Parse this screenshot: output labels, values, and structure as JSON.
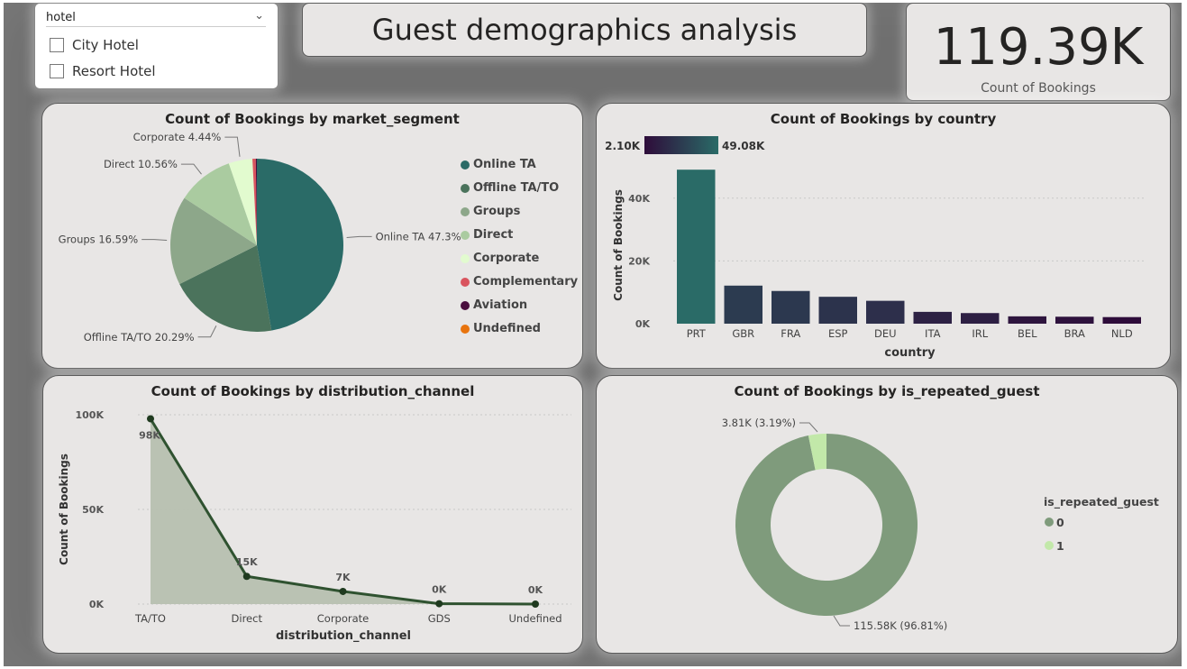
{
  "slicer": {
    "field": "hotel",
    "options": [
      "City Hotel",
      "Resort Hotel"
    ]
  },
  "header": {
    "title": "Guest demographics analysis"
  },
  "kpi": {
    "value": "119.39K",
    "label": "Count of Bookings"
  },
  "colors": {
    "teal": "#2a6b67",
    "purple_dark": "#2e0c3a",
    "line": "#2f5230",
    "area": "#b7c0b0",
    "donut0": "#7f9b7c",
    "donut1": "#c2e8a9"
  },
  "chart_data": [
    {
      "id": "market_segment",
      "type": "pie",
      "title": "Count of Bookings by market_segment",
      "slices": [
        {
          "name": "Online TA",
          "value": 47.3,
          "label": "Online TA 47.3%",
          "color": "#2a6b67"
        },
        {
          "name": "Offline TA/TO",
          "value": 20.29,
          "label": "Offline TA/TO 20.29%",
          "color": "#4b735c"
        },
        {
          "name": "Groups",
          "value": 16.59,
          "label": "Groups 16.59%",
          "color": "#8da78a"
        },
        {
          "name": "Direct",
          "value": 10.56,
          "label": "Direct 10.56%",
          "color": "#aacba0"
        },
        {
          "name": "Corporate",
          "value": 4.44,
          "label": "Corporate 4.44%",
          "color": "#e2fbcf"
        },
        {
          "name": "Complementary",
          "value": 0.62,
          "label": "",
          "color": "#d9545e"
        },
        {
          "name": "Aviation",
          "value": 0.2,
          "label": "",
          "color": "#4a0e3e"
        },
        {
          "name": "Undefined",
          "value": 0.0,
          "label": "",
          "color": "#e8740e"
        }
      ],
      "legend": [
        "Online TA",
        "Offline TA/TO",
        "Groups",
        "Direct",
        "Corporate",
        "Complementary",
        "Aviation",
        "Undefined"
      ]
    },
    {
      "id": "country",
      "type": "bar",
      "title": "Count of Bookings by country",
      "xlabel": "country",
      "ylabel": "Count of Bookings",
      "categories": [
        "PRT",
        "GBR",
        "FRA",
        "ESP",
        "DEU",
        "ITA",
        "IRL",
        "BEL",
        "BRA",
        "NLD"
      ],
      "values": [
        49080,
        12130,
        10420,
        8570,
        7290,
        3770,
        3380,
        2340,
        2220,
        2100
      ],
      "ylim": [
        0,
        50000
      ],
      "yticks": [
        0,
        20000,
        40000
      ],
      "ytick_labels": [
        "0K",
        "20K",
        "40K"
      ],
      "color_scale": {
        "min_label": "2.10K",
        "max_label": "49.08K",
        "min_color": "#2e0c3a",
        "max_color": "#2a6b67"
      }
    },
    {
      "id": "distribution_channel",
      "type": "area",
      "title": "Count of Bookings by distribution_channel",
      "xlabel": "distribution_channel",
      "ylabel": "Count of Bookings",
      "categories": [
        "TA/TO",
        "Direct",
        "Corporate",
        "GDS",
        "Undefined"
      ],
      "values": [
        97870,
        14645,
        6677,
        193,
        5
      ],
      "data_labels": [
        "98K",
        "15K",
        "7K",
        "0K",
        "0K"
      ],
      "ylim": [
        0,
        100000
      ],
      "yticks": [
        0,
        50000,
        100000
      ],
      "ytick_labels": [
        "0K",
        "50K",
        "100K"
      ]
    },
    {
      "id": "is_repeated_guest",
      "type": "donut",
      "title": "Count of Bookings by is_repeated_guest",
      "legend_title": "is_repeated_guest",
      "slices": [
        {
          "name": "0",
          "value": 115580,
          "label": "115.58K (96.81%)",
          "color": "#7f9b7c"
        },
        {
          "name": "1",
          "value": 3810,
          "label": "3.81K (3.19%)",
          "color": "#c2e8a9"
        }
      ]
    }
  ]
}
